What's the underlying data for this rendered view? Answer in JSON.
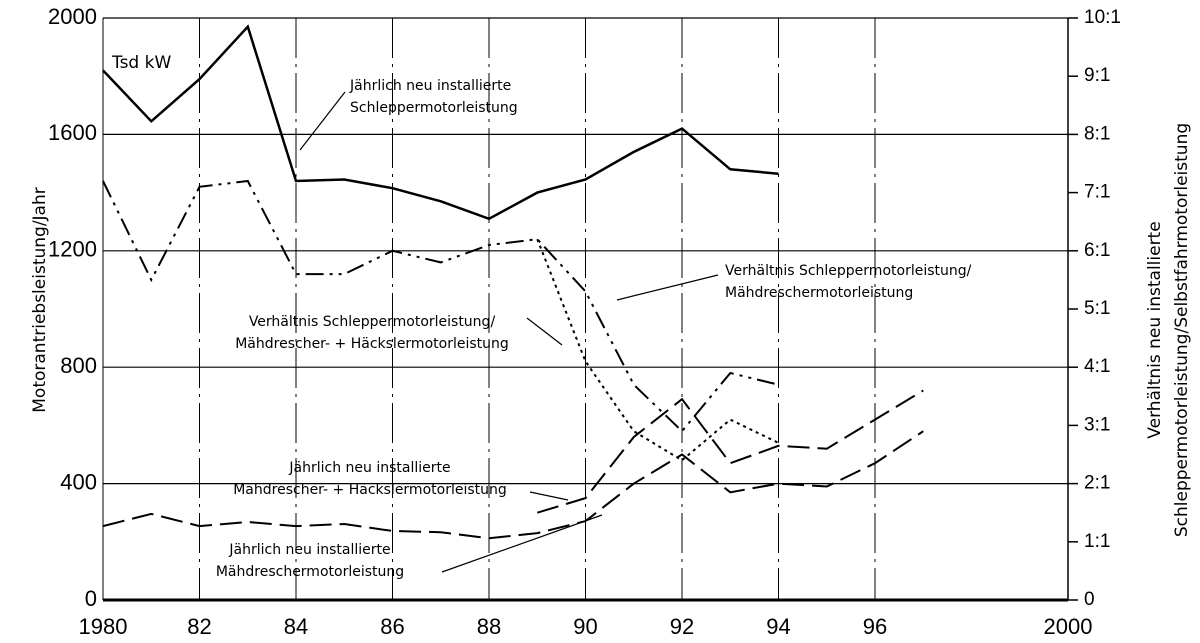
{
  "chart_data": {
    "type": "line",
    "y_label": "Motorantriebsleistung/Jahr",
    "unit_label": "Tsd kW",
    "y2_label": [
      "Verhältnis neu installierte",
      "Schleppermotorleistung/Selbstfahrmotorleistung"
    ],
    "x": [
      1980,
      1981,
      1982,
      1983,
      1984,
      1985,
      1986,
      1987,
      1988,
      1989,
      1990,
      1991,
      1992,
      1993,
      1994,
      1995,
      1996,
      1997
    ],
    "xlim": [
      1980,
      2000
    ],
    "xticks": [
      1980,
      {
        "value": 1982,
        "label": "82"
      },
      {
        "value": 1984,
        "label": "84"
      },
      {
        "value": 1986,
        "label": "86"
      },
      {
        "value": 1988,
        "label": "88"
      },
      {
        "value": 1990,
        "label": "90"
      },
      {
        "value": 1992,
        "label": "92"
      },
      {
        "value": 1994,
        "label": "94"
      },
      {
        "value": 1996,
        "label": "96"
      },
      2000
    ],
    "ylim": [
      0,
      2000
    ],
    "yticks": [
      0,
      400,
      800,
      1200,
      1600,
      2000
    ],
    "y2lim": [
      0,
      10
    ],
    "y2ticks": [
      0,
      {
        "value": 1,
        "label": "1:1"
      },
      {
        "value": 2,
        "label": "2:1"
      },
      {
        "value": 3,
        "label": "3:1"
      },
      {
        "value": 4,
        "label": "4:1"
      },
      {
        "value": 5,
        "label": "5:1"
      },
      {
        "value": 6,
        "label": "6:1"
      },
      {
        "value": 7,
        "label": "7:1"
      },
      {
        "value": 8,
        "label": "8:1"
      },
      {
        "value": 9,
        "label": "9:1"
      },
      {
        "value": 10,
        "label": "10:1"
      }
    ],
    "grid": true,
    "series": [
      {
        "name": [
          "Jährlich neu installierte",
          "Schleppermotorleistung"
        ],
        "color": "#000000",
        "dash": "solid",
        "values": [
          1820,
          1645,
          1790,
          1970,
          1440,
          1445,
          1415,
          1370,
          1310,
          1400,
          1445,
          1540,
          1620,
          1480,
          1465,
          null,
          null,
          null
        ]
      },
      {
        "name": [
          "Verhältnis Schleppermotorleistung/",
          "Mähdreschermotorleistung"
        ],
        "color": "#000000",
        "dash": "dashdot",
        "axis": "y2",
        "values": [
          7.2,
          5.5,
          7.1,
          7.2,
          5.6,
          5.6,
          6.0,
          5.8,
          6.1,
          6.2,
          5.3,
          3.7,
          2.9,
          3.9,
          3.7,
          null,
          null,
          null
        ]
      },
      {
        "name": [
          "Verhältnis Schleppermotorleistung/",
          "Mähdrescher- + Häckslermotorleistung"
        ],
        "color": "#000000",
        "dash": "dot",
        "axis": "y2",
        "values": [
          null,
          null,
          null,
          null,
          null,
          null,
          null,
          null,
          null,
          6.2,
          4.1,
          2.9,
          2.4,
          3.1,
          2.7,
          null,
          null,
          null
        ]
      },
      {
        "name": [
          "Jährlich neu installierte",
          "Mähdrescher- + Häckslermotorleistung"
        ],
        "color": "#000000",
        "dash": "dash",
        "values": [
          null,
          null,
          null,
          null,
          null,
          null,
          null,
          null,
          null,
          300,
          350,
          560,
          690,
          470,
          530,
          520,
          620,
          720
        ]
      },
      {
        "name": [
          "Jährlich neu installierte",
          "Mähdreschermotorleistung"
        ],
        "color": "#000000",
        "dash": "dash",
        "values": [
          254,
          296,
          254,
          268,
          254,
          261,
          237,
          233,
          212,
          230,
          271,
          400,
          500,
          370,
          400,
          390,
          470,
          580
        ]
      }
    ]
  }
}
